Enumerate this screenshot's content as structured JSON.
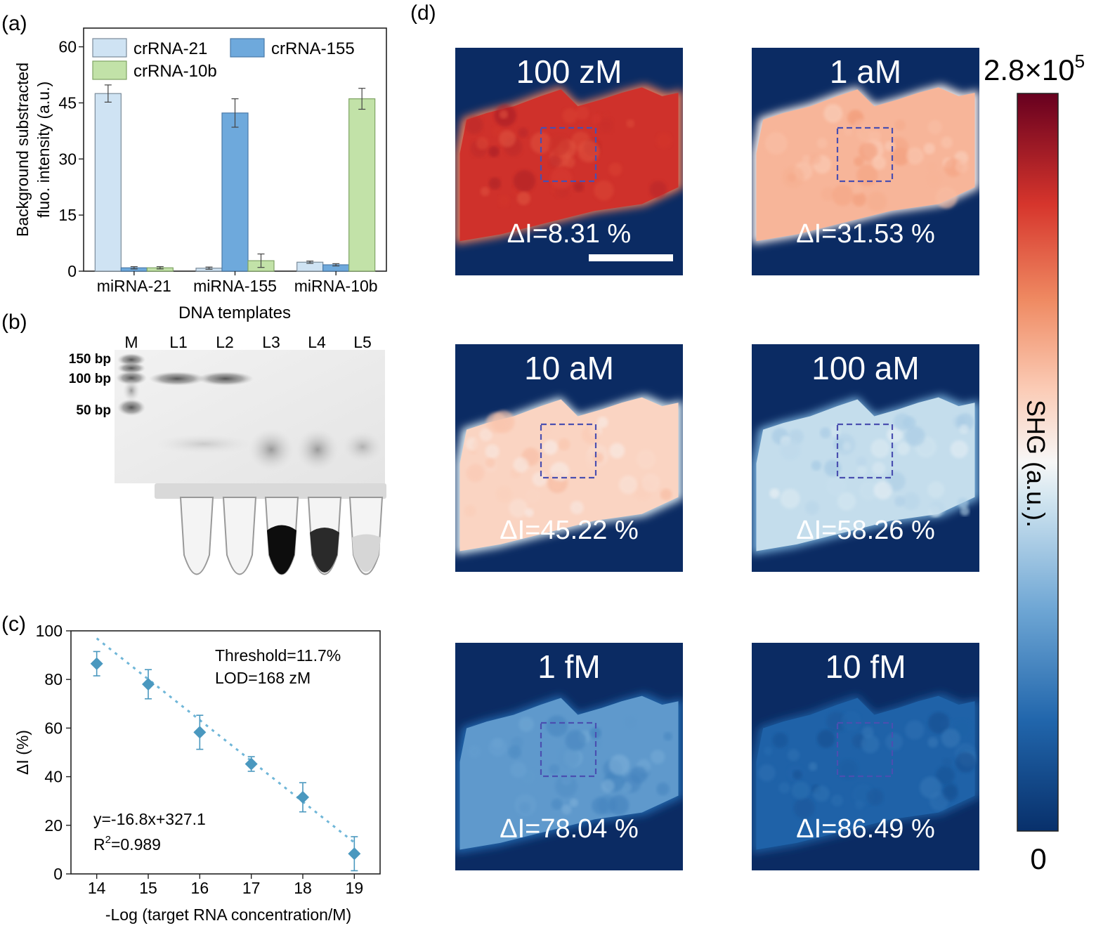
{
  "panels": {
    "a": "(a)",
    "b": "(b)",
    "c": "(c)",
    "d": "(d)"
  },
  "chart_data": [
    {
      "id": "a",
      "type": "bar",
      "xlabel": "DNA templates",
      "ylabel_line1": "Background substracted",
      "ylabel_line2": "fluo. intensity (a.u.)",
      "ylim": [
        0,
        65
      ],
      "yticks": [
        0,
        15,
        30,
        45,
        60
      ],
      "categories": [
        "miRNA-21",
        "miRNA-155",
        "miRNA-10b"
      ],
      "series": [
        {
          "name": "crRNA-21",
          "color": "#cfe3f3",
          "values": [
            47.5,
            0.8,
            2.4
          ],
          "errors": [
            2.3,
            0.3,
            0.3
          ]
        },
        {
          "name": "crRNA-155",
          "color": "#6ea9dc",
          "values": [
            0.9,
            42.3,
            1.7
          ],
          "errors": [
            0.3,
            3.8,
            0.3
          ]
        },
        {
          "name": "crRNA-10b",
          "color": "#c2e2a8",
          "values": [
            0.9,
            2.8,
            46.1
          ],
          "errors": [
            0.3,
            1.8,
            2.8
          ]
        }
      ]
    },
    {
      "id": "c",
      "type": "scatter",
      "xlabel": "-Log (target RNA concentration/M)",
      "ylabel": "ΔI (%)",
      "xlim": [
        13.5,
        19.5
      ],
      "ylim": [
        0,
        100
      ],
      "xticks": [
        14,
        15,
        16,
        17,
        18,
        19
      ],
      "yticks": [
        0,
        20,
        40,
        60,
        80,
        100
      ],
      "x": [
        14,
        15,
        16,
        17,
        18,
        19
      ],
      "y": [
        86.49,
        78.04,
        58.26,
        45.22,
        31.53,
        8.31
      ],
      "yerr": [
        5.0,
        6.0,
        7.0,
        3.0,
        6.0,
        7.0
      ],
      "fit": {
        "slope": -16.8,
        "intercept": 327.1
      },
      "annotations": {
        "threshold": "Threshold=11.7%",
        "lod": "LOD=168 zM",
        "equation": "y=-16.8x+327.1",
        "r2_prefix": "R",
        "r2_sup": "2",
        "r2_value": "=0.989"
      },
      "color": "#4a98bf"
    }
  ],
  "gel": {
    "lanes": [
      "M",
      "L1",
      "L2",
      "L3",
      "L4",
      "L5"
    ],
    "markers": [
      "150 bp",
      "100 bp",
      "50 bp"
    ]
  },
  "shg": {
    "tiles": [
      {
        "conc": "100 zM",
        "delta": "ΔI=8.31 %",
        "level": 0.86
      },
      {
        "conc": "1 aM",
        "delta": "ΔI=31.53 %",
        "level": 0.64
      },
      {
        "conc": "10 aM",
        "delta": "ΔI=45.22 %",
        "level": 0.58
      },
      {
        "conc": "100 aM",
        "delta": "ΔI=58.26 %",
        "level": 0.43
      },
      {
        "conc": "1 fM",
        "delta": "ΔI=78.04 %",
        "level": 0.27
      },
      {
        "conc": "10 fM",
        "delta": "ΔI=86.49 %",
        "level": 0.14
      }
    ],
    "colorbar": {
      "max_base": "2.8×10",
      "max_exp": "5",
      "min": "0",
      "label": "SHG (a.u.)."
    }
  }
}
